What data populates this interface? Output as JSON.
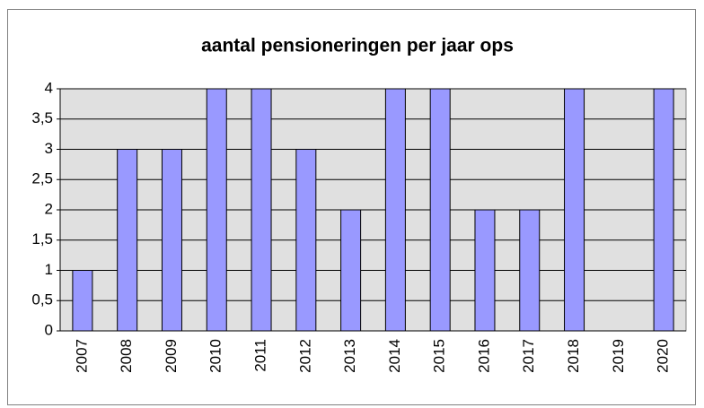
{
  "chart_data": {
    "type": "bar",
    "title": "aantal pensioneringen per jaar ops",
    "categories": [
      "2007",
      "2008",
      "2009",
      "2010",
      "2011",
      "2012",
      "2013",
      "2014",
      "2015",
      "2016",
      "2017",
      "2018",
      "2019",
      "2020"
    ],
    "values": [
      1,
      3,
      3,
      4,
      4,
      3,
      2,
      4,
      4,
      2,
      2,
      4,
      0,
      4
    ],
    "color": "#9999ff",
    "ylim": [
      0,
      4
    ],
    "yticks": [
      0,
      {
        "value": 0.5,
        "label": "0,5"
      },
      1,
      {
        "value": 1.5,
        "label": "1,5"
      },
      2,
      {
        "value": 2.5,
        "label": "2,5"
      },
      3,
      {
        "value": 3.5,
        "label": "3,5"
      },
      4
    ],
    "grid": true
  }
}
